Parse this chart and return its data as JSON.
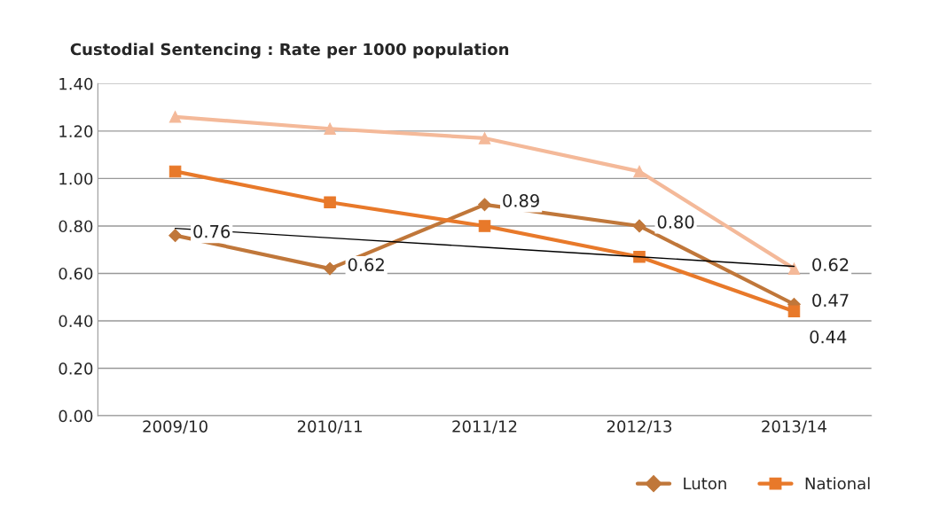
{
  "chart_data": {
    "type": "line",
    "title": "Custodial Sentencing : Rate per 1000 population",
    "categories": [
      "2009/10",
      "2010/11",
      "2011/12",
      "2012/13",
      "2013/14"
    ],
    "series": [
      {
        "color": "#f4b999",
        "marker": "triangle",
        "values": [
          1.26,
          1.21,
          1.17,
          1.03,
          0.62
        ],
        "value_labels": [
          null,
          null,
          null,
          null,
          "0.62"
        ]
      },
      {
        "name": "Luton",
        "color": "#c0773a",
        "marker": "diamond",
        "values": [
          0.76,
          0.62,
          0.89,
          0.8,
          0.47
        ],
        "value_labels": [
          "0.76",
          "0.62",
          "0.89",
          "0.80",
          "0.47"
        ]
      },
      {
        "name": "National",
        "color": "#e8792a",
        "marker": "square",
        "values": [
          1.03,
          0.9,
          0.8,
          0.67,
          0.44
        ],
        "value_labels": [
          null,
          null,
          null,
          null,
          "0.44"
        ]
      },
      {
        "type": "line",
        "color": "#000000",
        "marker": "none",
        "values": [
          0.79,
          0.75,
          0.71,
          0.67,
          0.63
        ]
      }
    ],
    "ylim": [
      0,
      1.4
    ],
    "yticks": [
      {
        "value": 0,
        "label": "0.00"
      },
      {
        "value": 0.2,
        "label": "0.20"
      },
      {
        "value": 0.4,
        "label": "0.40"
      },
      {
        "value": 0.6,
        "label": "0.60"
      },
      {
        "value": 0.8,
        "label": "0.80"
      },
      {
        "value": 1.0,
        "label": "1.00"
      },
      {
        "value": 1.2,
        "label": "1.20"
      },
      {
        "value": 1.4,
        "label": "1.40"
      }
    ],
    "grid": "y",
    "legend": "bottom right"
  }
}
